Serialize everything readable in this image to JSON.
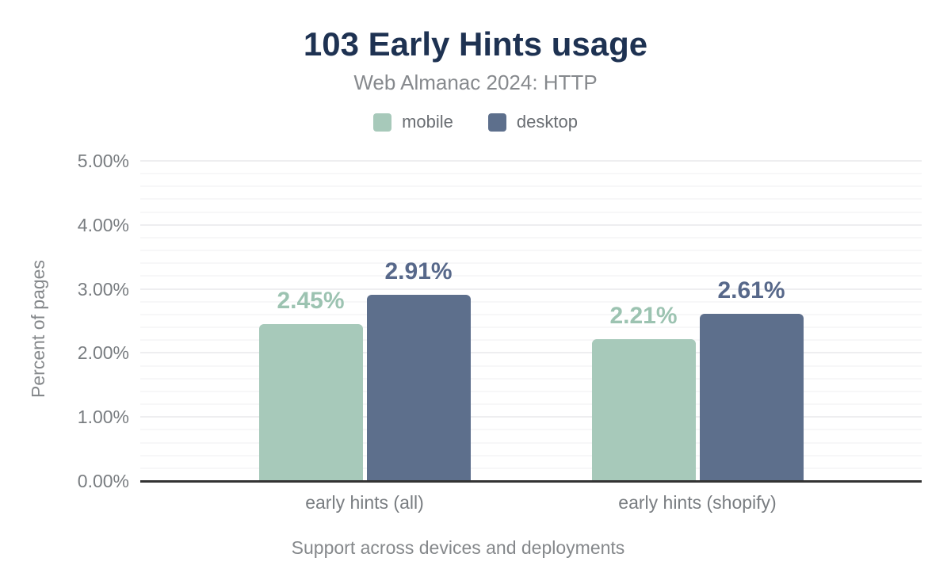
{
  "title": "103 Early Hints usage",
  "subtitle": "Web Almanac 2024: HTTP",
  "legend": {
    "items": [
      {
        "label": "mobile",
        "color": "#a7c9ba"
      },
      {
        "label": "desktop",
        "color": "#5d6f8c"
      }
    ]
  },
  "chart_data": {
    "type": "bar",
    "title": "103 Early Hints usage",
    "subtitle": "Web Almanac 2024: HTTP",
    "categories": [
      "early hints (all)",
      "early hints (shopify)"
    ],
    "series": [
      {
        "name": "mobile",
        "color": "#a7c9ba",
        "label_color": "#9cc3b1",
        "values": [
          2.45,
          2.21
        ],
        "data_labels": [
          "2.45%",
          "2.21%"
        ]
      },
      {
        "name": "desktop",
        "color": "#5d6f8c",
        "label_color": "#57688a",
        "values": [
          2.91,
          2.61
        ],
        "data_labels": [
          "2.91%",
          "2.61%"
        ]
      }
    ],
    "xlabel": "Support across devices and deployments",
    "ylabel": "Percent of pages",
    "ylim": [
      0,
      5
    ],
    "yticks": [
      "0.00%",
      "1.00%",
      "2.00%",
      "3.00%",
      "4.00%",
      "5.00%"
    ],
    "grid": {
      "major_step": 1.0,
      "minor_step": 0.2,
      "visible": true
    },
    "legend_position": "top"
  },
  "colors": {
    "title_text": "#1e3252",
    "subtitle_text": "#86898d",
    "tick_text": "#797d81",
    "axis_title_text": "#85888b",
    "legend_text": "#6a6e73",
    "axis_line": "#333333",
    "gridline_major": "#eeeef0",
    "gridline_minor": "#f7f7f8",
    "background": "#ffffff"
  }
}
